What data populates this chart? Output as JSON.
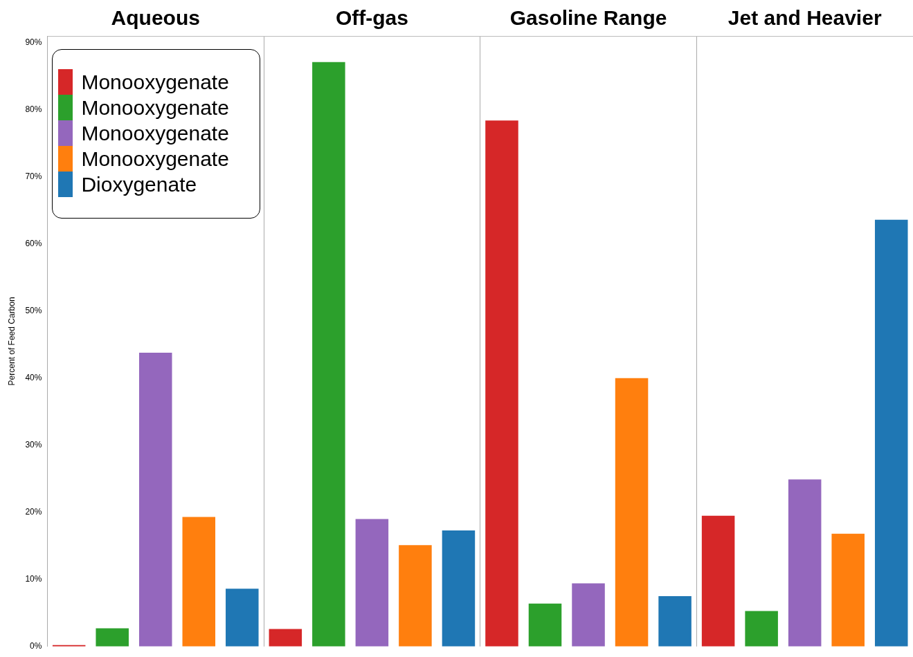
{
  "chart_data": {
    "type": "bar",
    "categories": [
      "Aqueous",
      "Off-gas",
      "Gasoline Range",
      "Jet and Heavier"
    ],
    "ylabel": "Percent of Feed Carbon",
    "ylim": [
      0,
      91
    ],
    "yticks": [
      {
        "value": 0,
        "label": "0%"
      },
      {
        "value": 10,
        "label": "10%"
      },
      {
        "value": 20,
        "label": "20%"
      },
      {
        "value": 30,
        "label": "30%"
      },
      {
        "value": 40,
        "label": "40%"
      },
      {
        "value": 50,
        "label": "50%"
      },
      {
        "value": 60,
        "label": "60%"
      },
      {
        "value": 70,
        "label": "70%"
      },
      {
        "value": 80,
        "label": "80%"
      },
      {
        "value": 90,
        "label": "90%"
      }
    ],
    "grid": "x",
    "legend": "top left",
    "series": [
      {
        "name": "Monooxygenate",
        "color": "#d62728",
        "values": [
          0.2,
          2.6,
          78.4,
          19.5
        ]
      },
      {
        "name": "Monooxygenate",
        "color": "#2ca02c",
        "values": [
          2.7,
          87.1,
          6.4,
          5.3
        ]
      },
      {
        "name": "Monooxygenate",
        "color": "#9467bd",
        "values": [
          43.8,
          19.0,
          9.4,
          24.9
        ]
      },
      {
        "name": "Monooxygenate",
        "color": "#ff7f0e",
        "values": [
          19.3,
          15.1,
          40.0,
          16.8
        ]
      },
      {
        "name": "Dioxygenate",
        "color": "#1f77b4",
        "values": [
          8.6,
          17.3,
          7.5,
          63.6
        ]
      }
    ]
  }
}
